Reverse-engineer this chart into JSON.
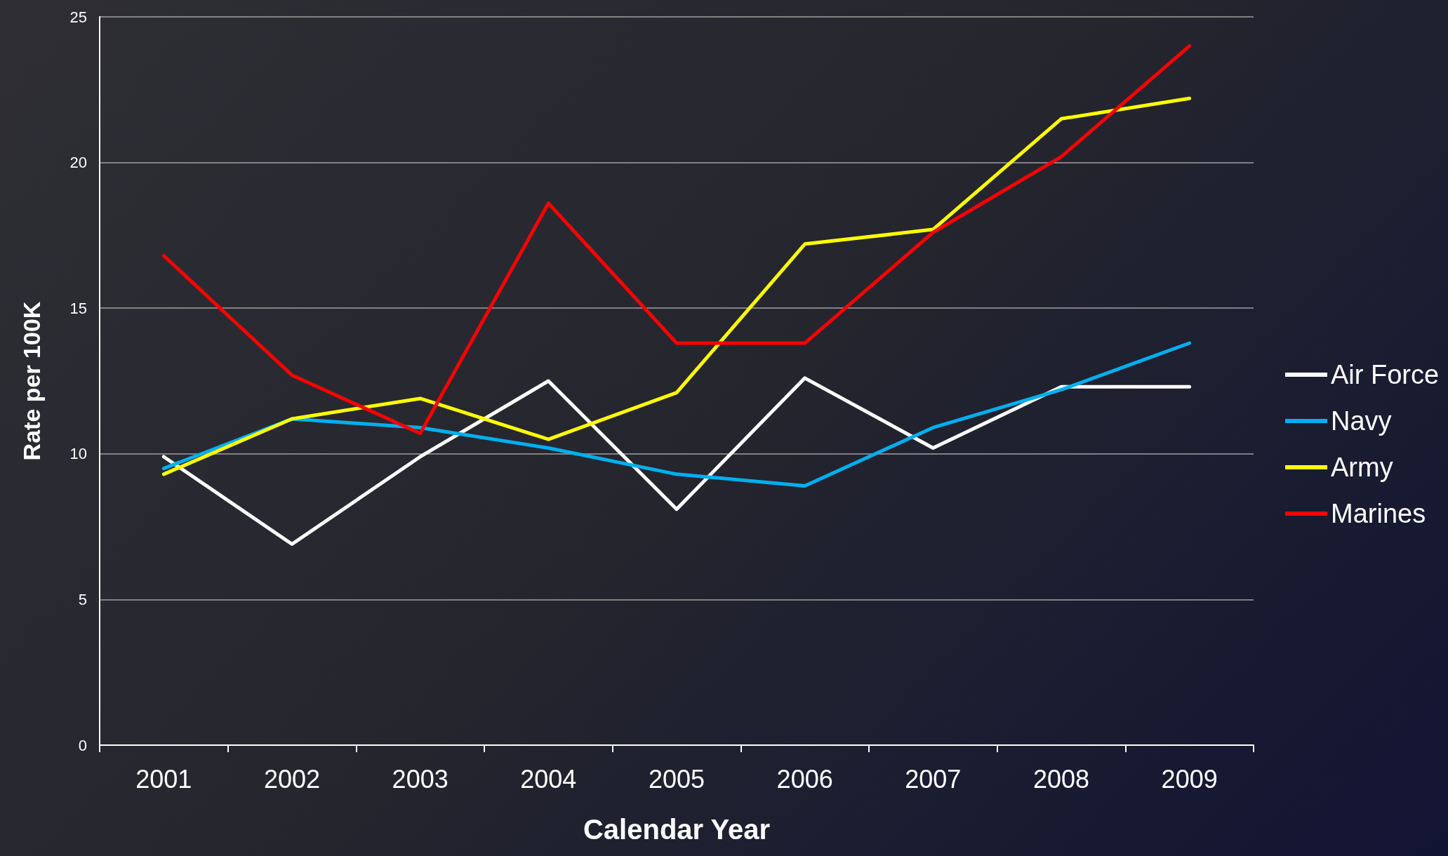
{
  "chart_data": {
    "type": "line",
    "xlabel": "Calendar Year",
    "ylabel": "Rate per 100K",
    "categories": [
      "2001",
      "2002",
      "2003",
      "2004",
      "2005",
      "2006",
      "2007",
      "2008",
      "2009"
    ],
    "series": [
      {
        "name": "Air Force",
        "color": "#ffffff",
        "values": [
          9.9,
          6.9,
          9.9,
          12.5,
          8.1,
          12.6,
          10.2,
          12.3,
          12.3
        ]
      },
      {
        "name": "Navy",
        "color": "#00b0f0",
        "values": [
          9.5,
          11.2,
          10.9,
          10.2,
          9.3,
          8.9,
          10.9,
          12.2,
          13.8
        ]
      },
      {
        "name": "Army",
        "color": "#ffff00",
        "values": [
          9.3,
          11.2,
          11.9,
          10.5,
          12.1,
          17.2,
          17.7,
          21.5,
          22.2
        ]
      },
      {
        "name": "Marines",
        "color": "#ff0000",
        "values": [
          16.8,
          12.7,
          10.7,
          18.6,
          13.8,
          13.8,
          17.6,
          20.2,
          24.0
        ]
      }
    ],
    "ylim": [
      0,
      25
    ],
    "yticks": [
      0,
      5,
      10,
      15,
      20,
      25
    ],
    "grid": "y",
    "legend": "right",
    "marker": "none",
    "line_style": "solid"
  }
}
